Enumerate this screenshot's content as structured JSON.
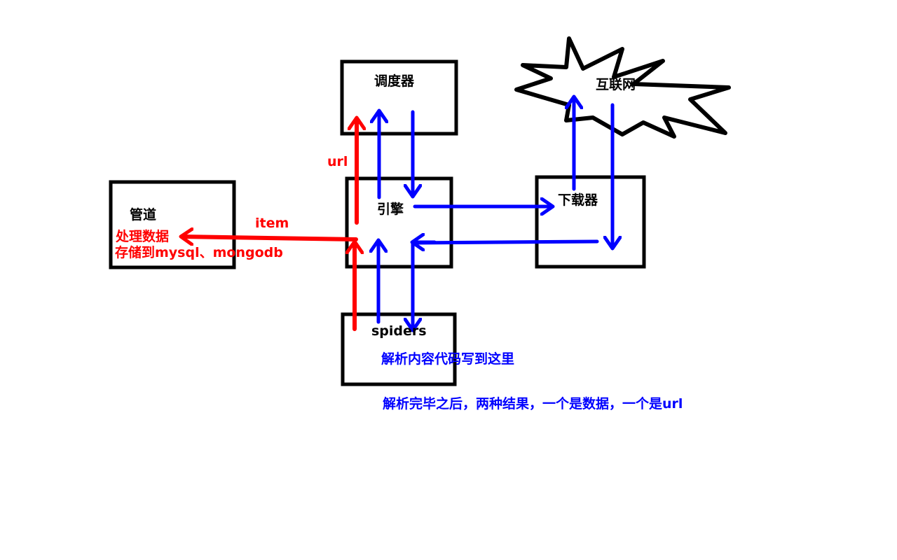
{
  "nodes": {
    "scheduler": "调度器",
    "engine": "引擎",
    "downloader": "下载器",
    "internet": "互联网",
    "pipeline": "管道",
    "spiders": "spiders"
  },
  "annotations": {
    "url_label": "url",
    "item_label": "item",
    "pipeline_line1": "处理数据",
    "pipeline_line2": "存储到mysql、mongodb",
    "spiders_note": "解析内容代码写到这里",
    "result_note": "解析完毕之后，两种结果，一个是数据，一个是url"
  },
  "colors": {
    "box_stroke": "#000000",
    "request_flow": "#0000ff",
    "data_flow": "#ff0000"
  }
}
